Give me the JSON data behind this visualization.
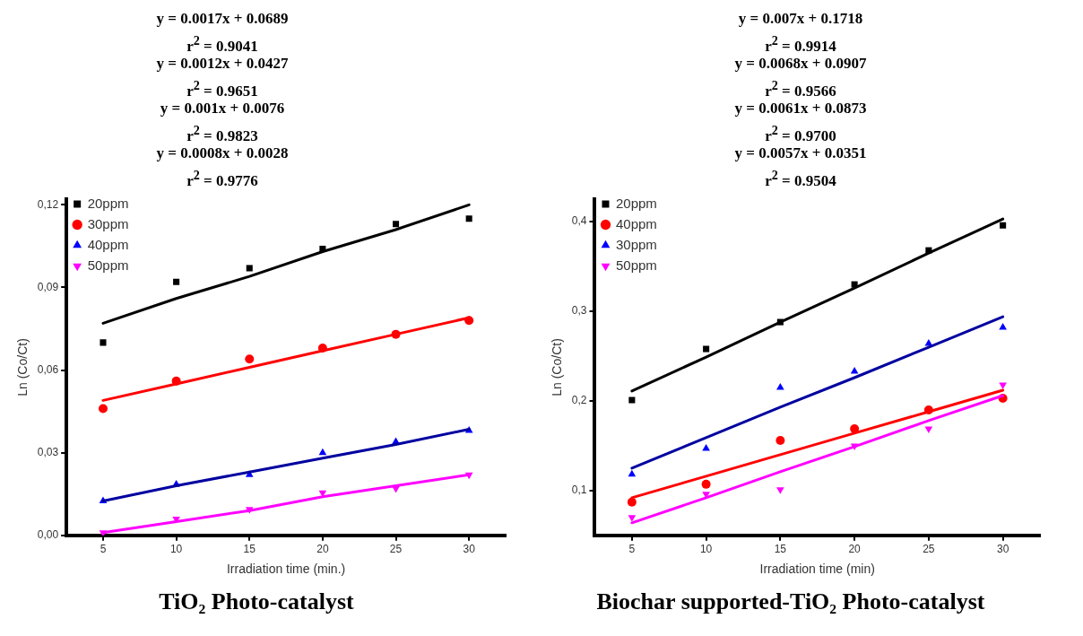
{
  "chart_data": [
    {
      "type": "scatter",
      "title": "TiO₂  Photo-catalyst",
      "xlabel": "Irradiation time (min.)",
      "ylabel": "Ln (Co/Ct)",
      "annotations": [
        "y = 0.0017x + 0.0689",
        "r$^{2}$ = 0.9041",
        "y = 0.0012x + 0.0427",
        "r$^{2}$ = 0.9651",
        "y = 0.001x + 0.0076",
        "r$^{2}$ = 0.9823",
        "y = 0.0008x + 0.0028",
        "r$^{2}$ = 0.9776"
      ],
      "x": [
        5,
        10,
        15,
        20,
        25,
        30
      ],
      "xlim": [
        2.5,
        32.5
      ],
      "xticks": [
        5,
        10,
        15,
        20,
        25,
        30
      ],
      "ylim": [
        0,
        0.122
      ],
      "yticks": [
        {
          "value": 0,
          "label": "0,00"
        },
        {
          "value": 0.03,
          "label": "0,03"
        },
        {
          "value": 0.06,
          "label": "0,06"
        },
        {
          "value": 0.09,
          "label": "0,09"
        },
        {
          "value": 0.12,
          "label": "0,12"
        }
      ],
      "grid": false,
      "legend": "top left",
      "series": [
        {
          "name": "20ppm",
          "color": "#000000",
          "marker": "square",
          "values": [
            0.07,
            0.092,
            0.097,
            0.104,
            0.113,
            0.115
          ]
        },
        {
          "name": "30ppm",
          "color": "#ff0000",
          "marker": "circle",
          "values": [
            0.046,
            0.056,
            0.064,
            0.068,
            0.073,
            0.078
          ]
        },
        {
          "name": "40ppm",
          "color": "#0000ff",
          "marker": "triangle",
          "values": [
            0.0125,
            0.0185,
            0.022,
            0.03,
            0.034,
            0.038
          ]
        },
        {
          "name": "50ppm",
          "color": "#ff00ff",
          "marker": "triangle-down",
          "values": [
            0.001,
            0.006,
            0.0095,
            0.0155,
            0.017,
            0.022
          ]
        },
        {
          "type": "line",
          "color": "#000000",
          "values": [
            0.077,
            0.086,
            0.094,
            0.103,
            0.111,
            0.12
          ]
        },
        {
          "type": "line",
          "color": "#ff0000",
          "values": [
            0.049,
            0.055,
            0.061,
            0.067,
            0.073,
            0.079
          ]
        },
        {
          "type": "line",
          "color": "#0000a0",
          "values": [
            0.0125,
            0.018,
            0.023,
            0.028,
            0.033,
            0.0385
          ]
        },
        {
          "type": "line",
          "color": "#ff00ff",
          "values": [
            0.001,
            0.005,
            0.009,
            0.014,
            0.018,
            0.022
          ]
        }
      ]
    },
    {
      "type": "scatter",
      "title": "Biochar supported-TiO₂ Photo-catalyst",
      "xlabel": "Irradiation time (min)",
      "ylabel": "Ln (Co/Ct)",
      "annotations": [
        "y = 0.007x + 0.1718",
        "r$^{2}$ = 0.9914",
        "y = 0.0068x + 0.0907",
        "r$^{2}$ = 0.9566",
        "y = 0.0061x + 0.0873",
        "r$^{2}$ = 0.9700",
        "y = 0.0057x + 0.0351",
        "r$^{2}$ = 0.9504"
      ],
      "x": [
        5,
        10,
        15,
        20,
        25,
        30
      ],
      "xlim": [
        2.5,
        32.5
      ],
      "xticks": [
        5,
        10,
        15,
        20,
        25,
        30
      ],
      "ylim": [
        0.05,
        0.425
      ],
      "yticks": [
        {
          "value": 0.1,
          "label": "0,1"
        },
        {
          "value": 0.2,
          "label": "0,2"
        },
        {
          "value": 0.3,
          "label": "0,3"
        },
        {
          "value": 0.4,
          "label": "0,4"
        }
      ],
      "grid": false,
      "legend": "top left",
      "series": [
        {
          "name": "20ppm",
          "color": "#000000",
          "marker": "square",
          "values": [
            0.201,
            0.258,
            0.288,
            0.33,
            0.368,
            0.396
          ]
        },
        {
          "name": "40ppm",
          "color": "#ff0000",
          "marker": "circle",
          "values": [
            0.087,
            0.107,
            0.156,
            0.169,
            0.19,
            0.203
          ]
        },
        {
          "name": "30ppm",
          "color": "#0000ff",
          "marker": "triangle",
          "values": [
            0.118,
            0.147,
            0.215,
            0.233,
            0.264,
            0.282
          ]
        },
        {
          "name": "50ppm",
          "color": "#ff00ff",
          "marker": "triangle-down",
          "values": [
            0.07,
            0.096,
            0.101,
            0.15,
            0.169,
            0.218
          ]
        },
        {
          "type": "line",
          "color": "#000000",
          "values": [
            0.211,
            0.249,
            0.288,
            0.326,
            0.365,
            0.403
          ]
        },
        {
          "type": "line",
          "color": "#0000a0",
          "values": [
            0.125,
            0.159,
            0.193,
            0.226,
            0.26,
            0.294
          ]
        },
        {
          "type": "line",
          "color": "#ff0000",
          "values": [
            0.092,
            0.116,
            0.14,
            0.164,
            0.188,
            0.212
          ]
        },
        {
          "type": "line",
          "color": "#ff00ff",
          "values": [
            0.064,
            0.092,
            0.121,
            0.149,
            0.178,
            0.206
          ]
        }
      ]
    }
  ]
}
